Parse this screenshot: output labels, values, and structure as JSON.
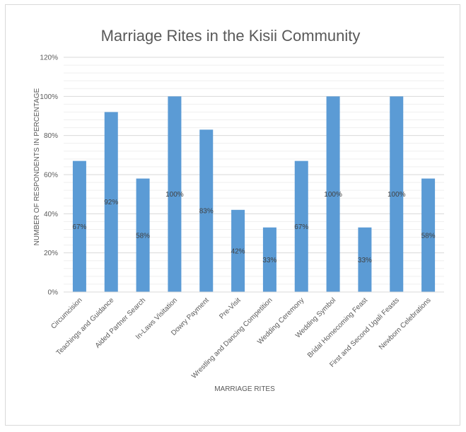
{
  "chart_data": {
    "type": "bar",
    "title": "Marriage Rites in the Kisii Community",
    "xlabel": "MARRIAGE RITES",
    "ylabel": "NUMBER OF RESPONDENTS IN PERCENTAGE",
    "ylim": [
      0,
      120
    ],
    "ytick_labels": [
      "0%",
      "20%",
      "40%",
      "60%",
      "80%",
      "100%",
      "120%"
    ],
    "categories": [
      "Circumcision",
      "Teachings and Guidance",
      "Aided Partner Search",
      "In-Laws Visitation",
      "Dowry Payment",
      "Pre-Visit",
      "Wrestling and Dancing Competition",
      "Wedding Ceremony",
      "Wedding Symbol",
      "Bridal Homecoming Feast",
      "First and Second Ugali Feasts",
      "Newborn Celebrations"
    ],
    "values": [
      67,
      92,
      58,
      100,
      83,
      42,
      33,
      67,
      100,
      33,
      100,
      58
    ],
    "data_labels": [
      "67%",
      "92%",
      "58%",
      "100%",
      "83%",
      "42%",
      "33%",
      "67%",
      "100%",
      "33%",
      "100%",
      "58%"
    ],
    "bar_color": "#5b9bd5",
    "grid": true,
    "legend": "none"
  }
}
